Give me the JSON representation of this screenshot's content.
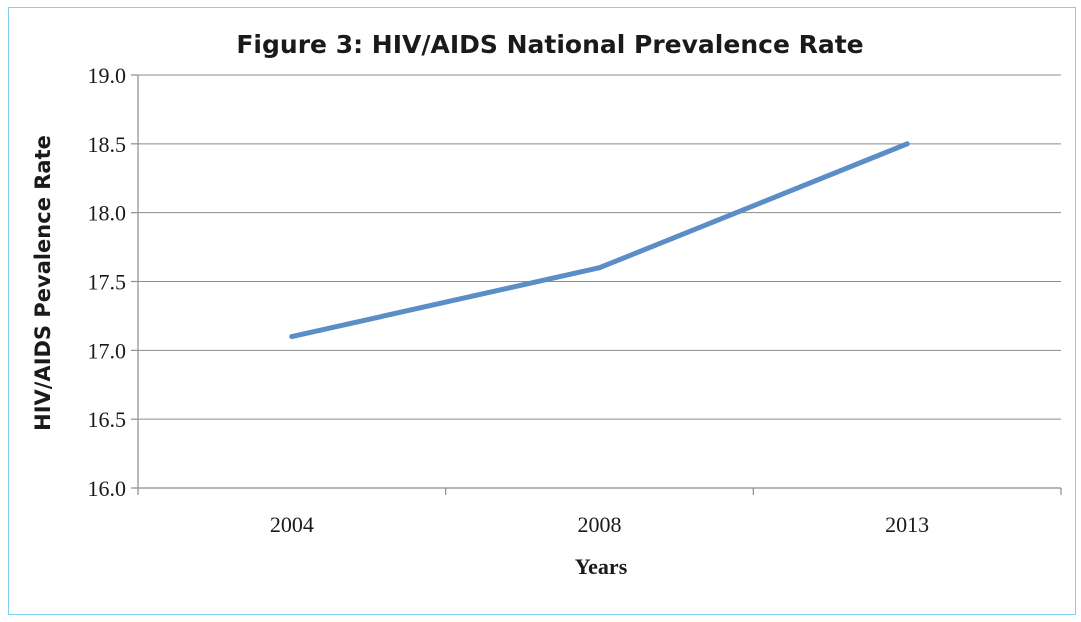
{
  "chart_data": {
    "type": "line",
    "title": "Figure 3: HIV/AIDS National Prevalence Rate",
    "xlabel": "Years",
    "ylabel": "HIV/AIDS Pevalence Rate",
    "categories": [
      "2004",
      "2008",
      "2013"
    ],
    "series": [
      {
        "values": [
          17.1,
          17.6,
          18.5
        ]
      }
    ],
    "ylim": [
      16.0,
      19.0
    ],
    "yticks": [
      "16.0",
      "16.5",
      "17.0",
      "17.5",
      "18.0",
      "18.5",
      "19.0"
    ],
    "grid": true,
    "legend": "none",
    "line_color": "#5b8dc7"
  }
}
